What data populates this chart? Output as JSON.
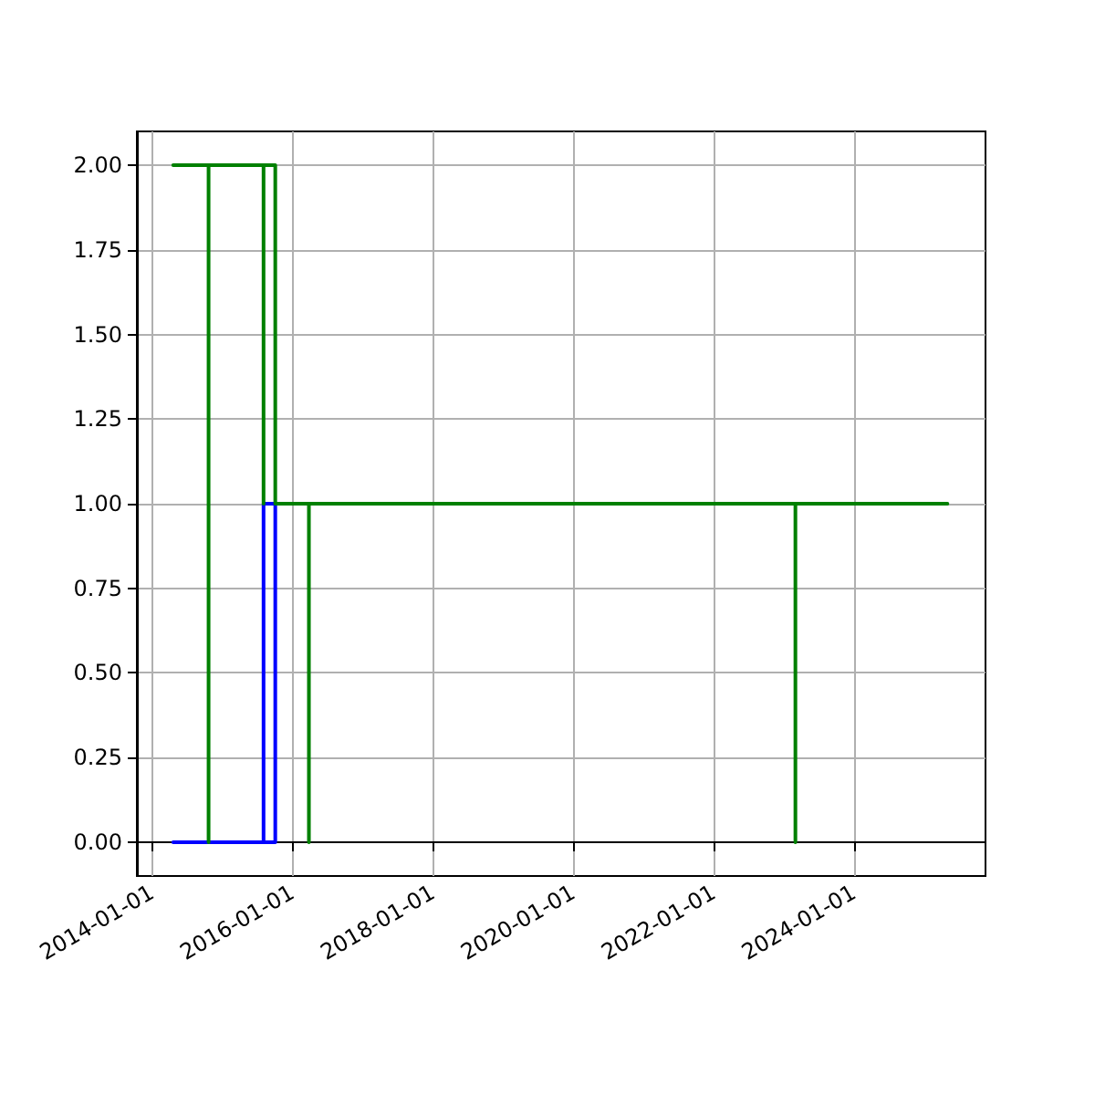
{
  "chart_data": {
    "type": "line",
    "marker": "none",
    "line_style": "solid",
    "grid": true,
    "legend": false,
    "xlim": [
      "2013-10-15",
      "2025-11-16"
    ],
    "xticks": [
      "2014-01-01",
      "2016-01-01",
      "2018-01-01",
      "2020-01-01",
      "2022-01-01",
      "2024-01-01"
    ],
    "ylim": [
      -0.1,
      2.1
    ],
    "yticks": [
      {
        "value": 0,
        "label": "0.00"
      },
      {
        "value": 0.25,
        "label": "0.25"
      },
      {
        "value": 0.5,
        "label": "0.50"
      },
      {
        "value": 0.75,
        "label": "0.75"
      },
      {
        "value": 1,
        "label": "1.00"
      },
      {
        "value": 1.25,
        "label": "1.25"
      },
      {
        "value": 1.5,
        "label": "1.50"
      },
      {
        "value": 1.75,
        "label": "1.75"
      },
      {
        "value": 2,
        "label": "2.00"
      }
    ],
    "series": [
      {
        "color": "#0000ff",
        "x": [
          "2014-04-22",
          "2015-08-05",
          "2015-08-05",
          "2015-10-05",
          "2015-10-05",
          "2015-08-05"
        ],
        "values": [
          0,
          0,
          1,
          1,
          0,
          0
        ]
      },
      {
        "color": "#008000",
        "x": [
          "2014-04-22",
          "2014-10-23",
          "2014-10-23",
          "2014-10-23",
          "2015-08-05",
          "2015-08-05",
          "2015-08-05",
          "2015-10-05",
          "2015-10-05",
          "2016-03-28",
          "2016-03-28",
          "2016-03-28",
          "2023-03-03",
          "2023-03-03",
          "2023-03-03",
          "2025-05-02"
        ],
        "values": [
          2,
          2,
          0,
          2,
          2,
          1,
          2,
          2,
          1,
          1,
          0,
          1,
          1,
          0,
          1,
          1
        ]
      }
    ]
  }
}
